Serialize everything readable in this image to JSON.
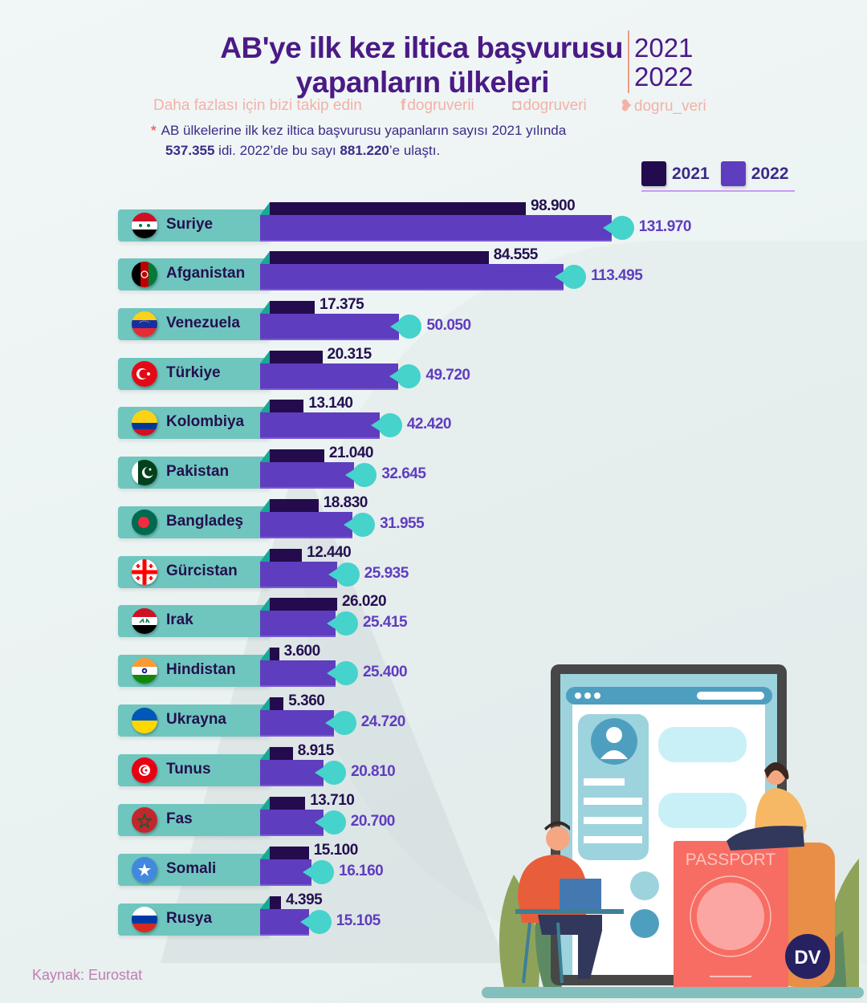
{
  "header": {
    "title_line1": "AB'ye ilk kez iltica başvurusu",
    "title_line2": "yapanların ülkeleri",
    "year1": "2021",
    "year2": "2022",
    "follow_text": "Daha fazlası için bizi takip edin",
    "social": [
      {
        "icon": "facebook-icon",
        "glyph": "f",
        "handle": "dogruverii"
      },
      {
        "icon": "instagram-icon",
        "glyph": "◘",
        "handle": "dogruveri"
      },
      {
        "icon": "twitter-icon",
        "glyph": "❥",
        "handle": "dogru_veri"
      }
    ],
    "note_star": "*",
    "note_line1": "AB ülkelerine ilk kez iltica başvurusu yapanların sayısı 2021 yılında",
    "note_total_2021": "537.355",
    "note_mid": " idi. 2022’de bu sayı ",
    "note_total_2022": "881.220",
    "note_end": "’e ulaştı."
  },
  "colors": {
    "bar_2021": "#240b4d",
    "bar_2022": "#5f3dbf",
    "marker": "#45d3cc",
    "label_pill": "#6fc6be",
    "title": "#4b1a86"
  },
  "chart_data": {
    "type": "bar",
    "orientation": "horizontal",
    "title": "AB'ye ilk kez iltica başvurusu yapanların ülkeleri 2021 2022",
    "xlabel": "",
    "ylabel": "",
    "legend": {
      "position": "top-right",
      "entries": [
        "2021",
        "2022"
      ]
    },
    "categories": [
      "Suriye",
      "Afganistan",
      "Venezuela",
      "Türkiye",
      "Kolombiya",
      "Pakistan",
      "Bangladeş",
      "Gürcistan",
      "Irak",
      "Hindistan",
      "Ukrayna",
      "Tunus",
      "Fas",
      "Somali",
      "Rusya"
    ],
    "flags": [
      "syria",
      "afghanistan",
      "venezuela",
      "turkey",
      "colombia",
      "pakistan",
      "bangladesh",
      "georgia",
      "iraq",
      "india",
      "ukraine",
      "tunisia",
      "morocco",
      "somalia",
      "russia"
    ],
    "series": [
      {
        "name": "2021",
        "values": [
          98900,
          84555,
          17375,
          20315,
          13140,
          21040,
          18830,
          12440,
          26020,
          3600,
          5360,
          8915,
          13710,
          15100,
          4395
        ],
        "labels": [
          "98.900",
          "84.555",
          "17.375",
          "20.315",
          "13.140",
          "21.040",
          "18.830",
          "12.440",
          "26.020",
          "3.600",
          "5.360",
          "8.915",
          "13.710",
          "15.100",
          "4.395"
        ]
      },
      {
        "name": "2022",
        "values": [
          131970,
          113495,
          50050,
          49720,
          42420,
          32645,
          31955,
          25935,
          25415,
          25400,
          24720,
          20810,
          20700,
          16160,
          15105
        ],
        "labels": [
          "131.970",
          "113.495",
          "50.050",
          "49.720",
          "42.420",
          "32.645",
          "31.955",
          "25.935",
          "25.415",
          "25.400",
          "24.720",
          "20.810",
          "20.700",
          "16.160",
          "15.105"
        ]
      }
    ],
    "xlim": [
      0,
      140000
    ],
    "grid": false
  },
  "illustration": {
    "passport_label": "PASSPORT",
    "logo_text": "DV"
  },
  "footer": {
    "source": "Kaynak: Eurostat"
  }
}
